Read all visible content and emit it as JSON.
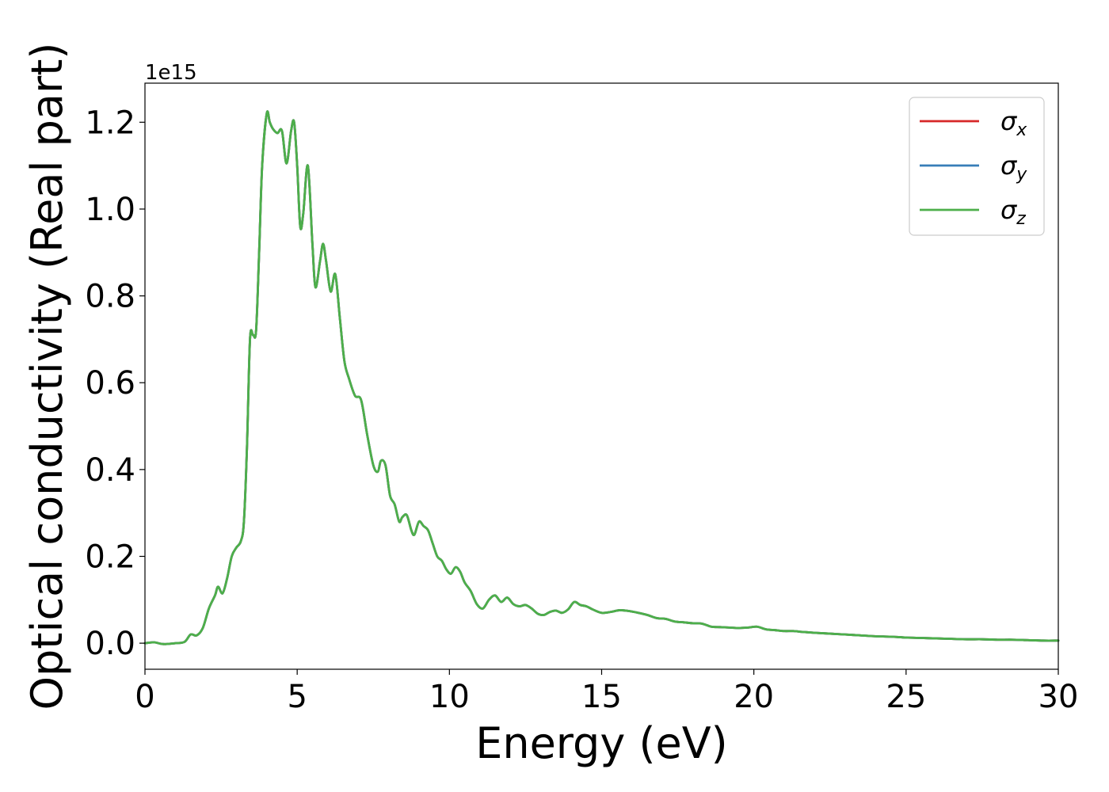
{
  "chart_data": {
    "type": "line",
    "title": "",
    "xlabel": "Energy (eV)",
    "ylabel": "Optical conductivity (Real part)",
    "y_offset_label": "1e15",
    "xlim": [
      0,
      30
    ],
    "ylim": [
      -0.06,
      1.29
    ],
    "xticks": [
      0,
      5,
      10,
      15,
      20,
      25,
      30
    ],
    "yticks": [
      0.0,
      0.2,
      0.4,
      0.6,
      0.8,
      1.0,
      1.2
    ],
    "ytick_labels": [
      "0.0",
      "0.2",
      "0.4",
      "0.6",
      "0.8",
      "1.0",
      "1.2"
    ],
    "grid": false,
    "legend_position": "top-right",
    "x": [
      0,
      0.3,
      0.6,
      1.0,
      1.3,
      1.5,
      1.7,
      1.9,
      2.1,
      2.3,
      2.4,
      2.55,
      2.7,
      2.85,
      3.0,
      3.15,
      3.25,
      3.35,
      3.45,
      3.55,
      3.65,
      3.75,
      3.85,
      4.0,
      4.1,
      4.2,
      4.35,
      4.5,
      4.65,
      4.8,
      4.9,
      5.0,
      5.1,
      5.2,
      5.35,
      5.5,
      5.6,
      5.75,
      5.85,
      5.95,
      6.1,
      6.25,
      6.4,
      6.55,
      6.7,
      6.9,
      7.1,
      7.3,
      7.5,
      7.65,
      7.75,
      7.9,
      8.05,
      8.2,
      8.35,
      8.45,
      8.6,
      8.75,
      8.85,
      9.0,
      9.15,
      9.3,
      9.45,
      9.6,
      9.75,
      9.9,
      10.05,
      10.2,
      10.35,
      10.5,
      10.7,
      10.9,
      11.1,
      11.3,
      11.5,
      11.7,
      11.9,
      12.1,
      12.3,
      12.5,
      12.7,
      12.9,
      13.1,
      13.3,
      13.5,
      13.7,
      13.9,
      14.1,
      14.3,
      14.5,
      14.7,
      15.0,
      15.3,
      15.6,
      15.9,
      16.2,
      16.5,
      16.8,
      17.1,
      17.4,
      17.7,
      18.0,
      18.3,
      18.6,
      18.9,
      19.2,
      19.5,
      19.8,
      20.1,
      20.4,
      20.7,
      21.0,
      21.3,
      21.6,
      22.0,
      22.5,
      23.0,
      23.5,
      24.0,
      24.5,
      25.0,
      25.5,
      26.0,
      26.5,
      27.0,
      27.5,
      28.0,
      28.5,
      29.0,
      29.5,
      30.0
    ],
    "series": [
      {
        "name": "σx",
        "color": "#d62728",
        "values": [
          0.0,
          0.002,
          -0.002,
          0.0,
          0.003,
          0.02,
          0.018,
          0.035,
          0.08,
          0.11,
          0.13,
          0.115,
          0.15,
          0.2,
          0.22,
          0.235,
          0.28,
          0.45,
          0.7,
          0.71,
          0.72,
          0.9,
          1.1,
          1.22,
          1.2,
          1.185,
          1.175,
          1.18,
          1.105,
          1.18,
          1.2,
          1.1,
          0.96,
          0.99,
          1.1,
          0.92,
          0.82,
          0.88,
          0.92,
          0.88,
          0.81,
          0.85,
          0.75,
          0.65,
          0.61,
          0.57,
          0.56,
          0.48,
          0.41,
          0.395,
          0.42,
          0.41,
          0.34,
          0.32,
          0.28,
          0.29,
          0.295,
          0.26,
          0.25,
          0.28,
          0.27,
          0.26,
          0.23,
          0.2,
          0.19,
          0.17,
          0.16,
          0.175,
          0.165,
          0.14,
          0.12,
          0.09,
          0.08,
          0.1,
          0.11,
          0.095,
          0.105,
          0.09,
          0.085,
          0.088,
          0.08,
          0.068,
          0.065,
          0.072,
          0.075,
          0.07,
          0.078,
          0.095,
          0.088,
          0.085,
          0.078,
          0.07,
          0.072,
          0.076,
          0.074,
          0.07,
          0.065,
          0.058,
          0.056,
          0.05,
          0.048,
          0.046,
          0.045,
          0.038,
          0.037,
          0.036,
          0.035,
          0.036,
          0.038,
          0.032,
          0.03,
          0.028,
          0.028,
          0.026,
          0.024,
          0.022,
          0.02,
          0.018,
          0.016,
          0.015,
          0.013,
          0.012,
          0.011,
          0.01,
          0.009,
          0.009,
          0.008,
          0.008,
          0.007,
          0.006,
          0.006
        ]
      },
      {
        "name": "σy",
        "color": "#377eb8",
        "values": [
          0.0,
          0.002,
          -0.002,
          0.0,
          0.003,
          0.02,
          0.018,
          0.035,
          0.08,
          0.11,
          0.13,
          0.115,
          0.15,
          0.2,
          0.22,
          0.235,
          0.28,
          0.45,
          0.7,
          0.71,
          0.72,
          0.9,
          1.1,
          1.22,
          1.2,
          1.185,
          1.175,
          1.18,
          1.105,
          1.18,
          1.2,
          1.1,
          0.96,
          0.99,
          1.1,
          0.92,
          0.82,
          0.88,
          0.92,
          0.88,
          0.81,
          0.85,
          0.75,
          0.65,
          0.61,
          0.57,
          0.56,
          0.48,
          0.41,
          0.395,
          0.42,
          0.41,
          0.34,
          0.32,
          0.28,
          0.29,
          0.295,
          0.26,
          0.25,
          0.28,
          0.27,
          0.26,
          0.23,
          0.2,
          0.19,
          0.17,
          0.16,
          0.175,
          0.165,
          0.14,
          0.12,
          0.09,
          0.08,
          0.1,
          0.11,
          0.095,
          0.105,
          0.09,
          0.085,
          0.088,
          0.08,
          0.068,
          0.065,
          0.072,
          0.075,
          0.07,
          0.078,
          0.095,
          0.088,
          0.085,
          0.078,
          0.07,
          0.072,
          0.076,
          0.074,
          0.07,
          0.065,
          0.058,
          0.056,
          0.05,
          0.048,
          0.046,
          0.045,
          0.038,
          0.037,
          0.036,
          0.035,
          0.036,
          0.038,
          0.032,
          0.03,
          0.028,
          0.028,
          0.026,
          0.024,
          0.022,
          0.02,
          0.018,
          0.016,
          0.015,
          0.013,
          0.012,
          0.011,
          0.01,
          0.009,
          0.009,
          0.008,
          0.008,
          0.007,
          0.006,
          0.006
        ]
      },
      {
        "name": "σz",
        "color": "#4daf4a",
        "values": [
          0.0,
          0.002,
          -0.002,
          0.0,
          0.003,
          0.02,
          0.018,
          0.035,
          0.08,
          0.11,
          0.13,
          0.115,
          0.15,
          0.2,
          0.22,
          0.235,
          0.28,
          0.45,
          0.7,
          0.71,
          0.72,
          0.9,
          1.1,
          1.22,
          1.2,
          1.185,
          1.175,
          1.18,
          1.105,
          1.18,
          1.2,
          1.1,
          0.96,
          0.99,
          1.1,
          0.92,
          0.82,
          0.88,
          0.92,
          0.88,
          0.81,
          0.85,
          0.75,
          0.65,
          0.61,
          0.57,
          0.56,
          0.48,
          0.41,
          0.395,
          0.42,
          0.41,
          0.34,
          0.32,
          0.28,
          0.29,
          0.295,
          0.26,
          0.25,
          0.28,
          0.27,
          0.26,
          0.23,
          0.2,
          0.19,
          0.17,
          0.16,
          0.175,
          0.165,
          0.14,
          0.12,
          0.09,
          0.08,
          0.1,
          0.11,
          0.095,
          0.105,
          0.09,
          0.085,
          0.088,
          0.08,
          0.068,
          0.065,
          0.072,
          0.075,
          0.07,
          0.078,
          0.095,
          0.088,
          0.085,
          0.078,
          0.07,
          0.072,
          0.076,
          0.074,
          0.07,
          0.065,
          0.058,
          0.056,
          0.05,
          0.048,
          0.046,
          0.045,
          0.038,
          0.037,
          0.036,
          0.035,
          0.036,
          0.038,
          0.032,
          0.03,
          0.028,
          0.028,
          0.026,
          0.024,
          0.022,
          0.02,
          0.018,
          0.016,
          0.015,
          0.013,
          0.012,
          0.011,
          0.01,
          0.009,
          0.009,
          0.008,
          0.008,
          0.007,
          0.006,
          0.006
        ]
      }
    ],
    "legend": [
      {
        "symbol": "σ",
        "subscript": "x",
        "color": "#d62728"
      },
      {
        "symbol": "σ",
        "subscript": "y",
        "color": "#377eb8"
      },
      {
        "symbol": "σ",
        "subscript": "z",
        "color": "#4daf4a"
      }
    ]
  }
}
